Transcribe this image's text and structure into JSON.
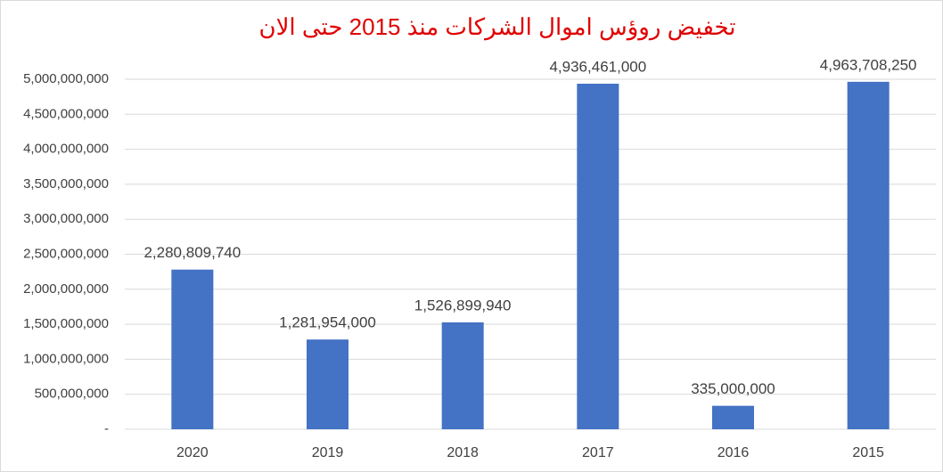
{
  "chart_data": {
    "type": "bar",
    "title": "تخفيض روؤس اموال الشركات منذ 2015 حتى الان",
    "categories": [
      "2020",
      "2019",
      "2018",
      "2017",
      "2016",
      "2015"
    ],
    "values": [
      2280809740,
      1281954000,
      1526899940,
      4936461000,
      335000000,
      4963708250
    ],
    "value_labels": [
      "2,280,809,740",
      "1,281,954,000",
      "1,526,899,940",
      "4,936,461,000",
      "335,000,000",
      "4,963,708,250"
    ],
    "color": "#4472c4",
    "ylim": [
      0,
      5000000000
    ],
    "yticks": [
      {
        "value": 0,
        "label": "-"
      },
      {
        "value": 500000000,
        "label": "500,000,000"
      },
      {
        "value": 1000000000,
        "label": "1,000,000,000"
      },
      {
        "value": 1500000000,
        "label": "1,500,000,000"
      },
      {
        "value": 2000000000,
        "label": "2,000,000,000"
      },
      {
        "value": 2500000000,
        "label": "2,500,000,000"
      },
      {
        "value": 3000000000,
        "label": "3,000,000,000"
      },
      {
        "value": 3500000000,
        "label": "3,500,000,000"
      },
      {
        "value": 4000000000,
        "label": "4,000,000,000"
      },
      {
        "value": 4500000000,
        "label": "4,500,000,000"
      },
      {
        "value": 5000000000,
        "label": "5,000,000,000"
      }
    ],
    "grid": true
  }
}
